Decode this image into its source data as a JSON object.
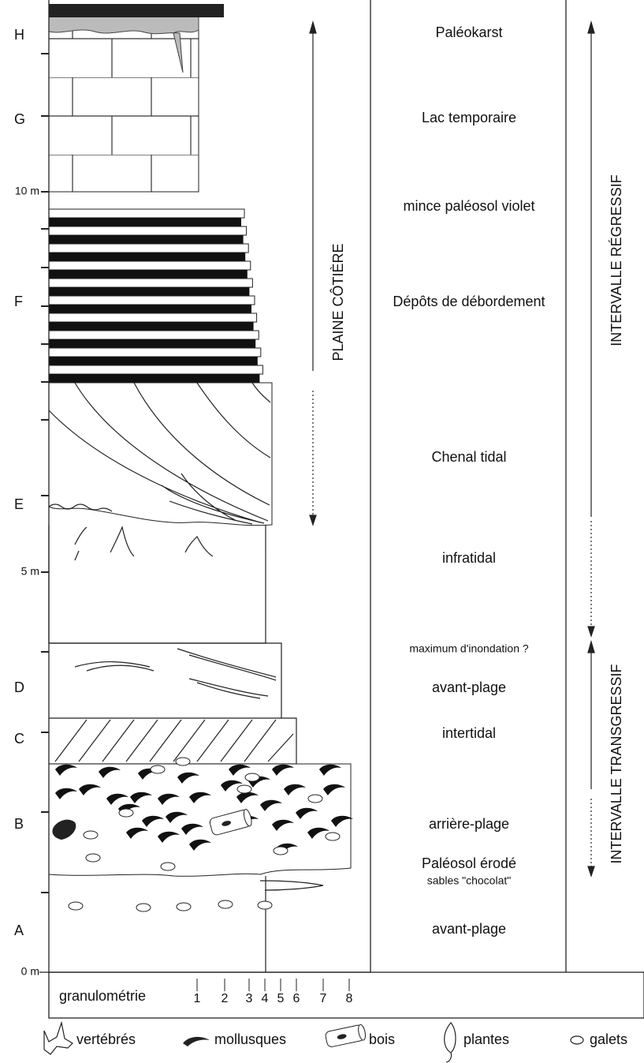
{
  "units": [
    "H",
    "G",
    "F",
    "E",
    "D",
    "C",
    "B",
    "A"
  ],
  "depth_labels": [
    "10 m",
    "5 m",
    "0 m"
  ],
  "environments": [
    "Paléokarst",
    "Lac temporaire",
    "mince paléosol violet",
    "Dépôts de débordement",
    "Chenal tidal",
    "infratidal",
    "maximum d'inondation ?",
    "avant-plage",
    "intertidal",
    "arrière-plage",
    "Paléosol érodé",
    "sables \"chocolat\"",
    "avant-plage"
  ],
  "annotations": {
    "coastal_plain": "PLAINE CÔTIÈRE",
    "regressive": "INTERVALLE RÉGRESSIF",
    "transgressive": "INTERVALLE TRANSGRESSIF"
  },
  "granulometry": {
    "label": "granulométrie",
    "classes": [
      "1",
      "2",
      "3",
      "4",
      "5",
      "6",
      "7",
      "8"
    ]
  },
  "legend": [
    "vertébrés",
    "mollusques",
    "bois",
    "plantes",
    "galets"
  ]
}
